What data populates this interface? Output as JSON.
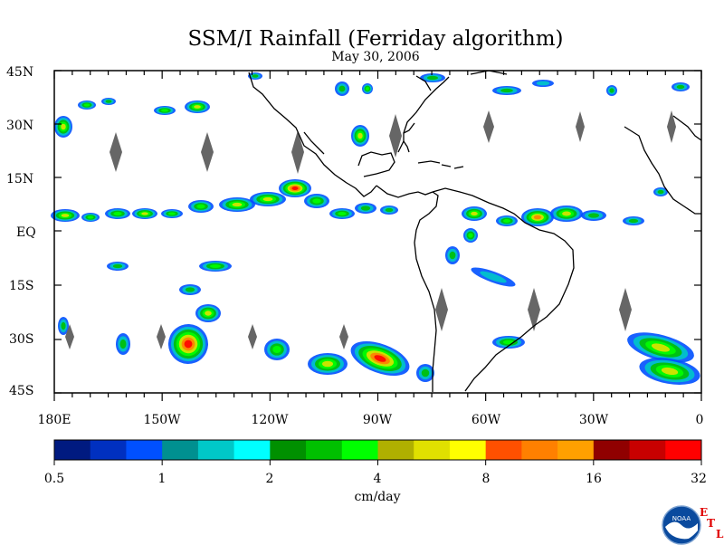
{
  "title": "SSM/I Rainfall (Ferriday algorithm)",
  "date": "May 30, 2006",
  "lat_labels": [
    "45N",
    "30N",
    "15N",
    "EQ",
    "15S",
    "30S",
    "45S"
  ],
  "lon_labels": [
    "180E",
    "150W",
    "120W",
    "90W",
    "60W",
    "30W",
    "0"
  ],
  "colorbar": {
    "ticks": [
      "0.5",
      "1",
      "2",
      "4",
      "8",
      "16",
      "32"
    ],
    "unit": "cm/day",
    "colors": [
      "#001a80",
      "#0030c0",
      "#0050ff",
      "#009090",
      "#00c8c8",
      "#00ffff",
      "#009000",
      "#00c000",
      "#00ff00",
      "#b0b000",
      "#e0e000",
      "#ffff00",
      "#ff5000",
      "#ff8000",
      "#ffa000",
      "#900000",
      "#c80000",
      "#ff0000"
    ]
  },
  "logo": {
    "text": "NOAA",
    "marks": [
      "E",
      "T",
      "L"
    ],
    "colors": {
      "ring": "#0a4a9e",
      "bird": "#ffffff"
    }
  },
  "colors": {
    "coast": "#000000",
    "gap": "#666666"
  }
}
